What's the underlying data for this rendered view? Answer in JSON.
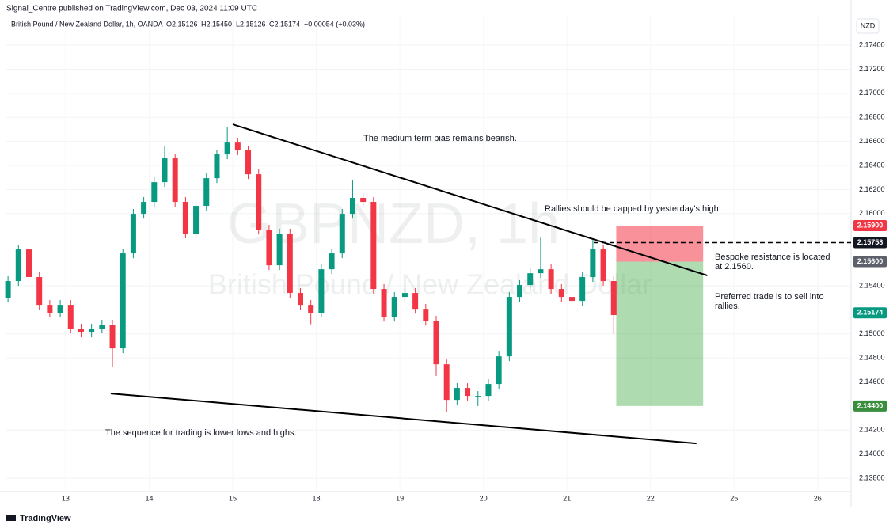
{
  "header": {
    "publisher": "Signal_Centre published on TradingView.com, Dec 03, 2024 11:09 UTC",
    "symbol": "British Pound / New Zealand Dollar, 1h, OANDA",
    "ohlc": [
      "O2.15126",
      "H2.15450",
      "L2.15126",
      "C2.15174",
      "+0.00054 (+0.03%)"
    ]
  },
  "footer": {
    "brand": "TradingView"
  },
  "chart_data": {
    "type": "candlestick",
    "currency": "NZD",
    "watermark": {
      "symbol": "GBPNZD, 1h",
      "description": "British Pound / New Zealand Dollar"
    },
    "up_color": "#089981",
    "down_color": "#f23645",
    "x": [
      -0.69,
      -0.565,
      -0.44,
      -0.315,
      -0.19,
      -0.065,
      0.06,
      0.185,
      0.31,
      0.435,
      0.56,
      0.685,
      0.81,
      0.935,
      1.06,
      1.185,
      1.31,
      1.435,
      1.56,
      1.685,
      1.81,
      1.935,
      2.06,
      2.185,
      2.31,
      2.435,
      2.56,
      2.685,
      2.81,
      2.935,
      3.06,
      3.185,
      3.31,
      3.435,
      3.56,
      3.685,
      3.81,
      3.935,
      4.06,
      4.185,
      4.31,
      4.435,
      4.56,
      4.685,
      4.81,
      4.935,
      5.06,
      5.185,
      5.31,
      5.435,
      5.56,
      5.685,
      5.81,
      5.935,
      6.06,
      6.185,
      6.31,
      6.435,
      6.56
    ],
    "open": [
      2.153,
      2.15439,
      2.15702,
      2.15472,
      2.15241,
      2.15175,
      2.15241,
      2.15044,
      2.15011,
      2.15044,
      2.15077,
      2.14879,
      2.15669,
      2.15998,
      2.16097,
      2.16261,
      2.16459,
      2.16097,
      2.15834,
      2.16064,
      2.16294,
      2.16492,
      2.1659,
      2.16525,
      2.16327,
      2.15866,
      2.1557,
      2.15834,
      2.1534,
      2.15241,
      2.15175,
      2.15537,
      2.15669,
      2.15998,
      2.1613,
      2.16097,
      2.15373,
      2.15142,
      2.15307,
      2.1534,
      2.15208,
      2.15109,
      2.14747,
      2.14451,
      2.1455,
      2.14484,
      2.14484,
      2.14583,
      2.14813,
      2.15307,
      2.15406,
      2.15504,
      2.15537,
      2.15373,
      2.15307,
      2.15274,
      2.15472,
      2.15702,
      2.15439
    ],
    "high": [
      2.15479,
      2.15742,
      2.15742,
      2.15512,
      2.15281,
      2.15281,
      2.15281,
      2.15084,
      2.15084,
      2.15117,
      2.15117,
      2.15709,
      2.16038,
      2.16137,
      2.16301,
      2.1656,
      2.16499,
      2.16137,
      2.16104,
      2.16334,
      2.16532,
      2.1672,
      2.1663,
      2.16565,
      2.16367,
      2.15906,
      2.15874,
      2.15874,
      2.1538,
      2.15281,
      2.15577,
      2.15709,
      2.16038,
      2.1628,
      2.1617,
      2.16137,
      2.15413,
      2.15347,
      2.1538,
      2.1538,
      2.15248,
      2.15149,
      2.14787,
      2.1459,
      2.1459,
      2.14524,
      2.14623,
      2.14853,
      2.15347,
      2.15446,
      2.15544,
      2.158,
      2.15577,
      2.15413,
      2.15347,
      2.15512,
      2.1578,
      2.15742,
      2.15479
    ],
    "low": [
      2.1526,
      2.15399,
      2.15432,
      2.15201,
      2.15135,
      2.15135,
      2.15004,
      2.14971,
      2.14971,
      2.15004,
      2.14728,
      2.14839,
      2.15629,
      2.15958,
      2.16057,
      2.16221,
      2.16057,
      2.15794,
      2.15794,
      2.16024,
      2.16254,
      2.16452,
      2.16485,
      2.16287,
      2.15826,
      2.1553,
      2.1553,
      2.153,
      2.15201,
      2.1508,
      2.15135,
      2.15497,
      2.15629,
      2.15958,
      2.16057,
      2.15333,
      2.15102,
      2.15102,
      2.15267,
      2.15168,
      2.15069,
      2.1465,
      2.1435,
      2.14411,
      2.14444,
      2.144,
      2.14444,
      2.14543,
      2.14773,
      2.15267,
      2.15366,
      2.15464,
      2.15333,
      2.15267,
      2.15234,
      2.15234,
      2.15432,
      2.15399,
      2.15
    ],
    "close": [
      2.15439,
      2.15702,
      2.15472,
      2.15241,
      2.15175,
      2.15241,
      2.15044,
      2.15011,
      2.15044,
      2.15077,
      2.14879,
      2.15669,
      2.15998,
      2.16097,
      2.16261,
      2.16459,
      2.16097,
      2.15834,
      2.16064,
      2.16294,
      2.16492,
      2.1659,
      2.16525,
      2.16327,
      2.15866,
      2.1557,
      2.15834,
      2.1534,
      2.15241,
      2.15175,
      2.15537,
      2.15669,
      2.15998,
      2.1613,
      2.16097,
      2.15373,
      2.15142,
      2.15307,
      2.1534,
      2.15208,
      2.15109,
      2.14747,
      2.14451,
      2.1455,
      2.14484,
      2.14484,
      2.14583,
      2.14813,
      2.15307,
      2.15406,
      2.15504,
      2.15537,
      2.15373,
      2.15307,
      2.15274,
      2.15472,
      2.15702,
      2.15439,
      2.15156
    ],
    "xlim": [
      -0.71,
      9.4
    ],
    "xticks": [
      {
        "value": 0,
        "label": "13"
      },
      {
        "value": 1,
        "label": "14"
      },
      {
        "value": 2,
        "label": "15"
      },
      {
        "value": 3,
        "label": "18"
      },
      {
        "value": 4,
        "label": "19"
      },
      {
        "value": 5,
        "label": "20"
      },
      {
        "value": 6,
        "label": "21"
      },
      {
        "value": 7,
        "label": "22"
      },
      {
        "value": 8,
        "label": "25"
      },
      {
        "value": 9,
        "label": "26"
      }
    ],
    "ylim": [
      2.13695,
      2.17644
    ],
    "yticks": [
      {
        "value": 2.138,
        "label": "2.13800"
      },
      {
        "value": 2.14,
        "label": "2.14000"
      },
      {
        "value": 2.142,
        "label": "2.14200"
      },
      {
        "value": 2.146,
        "label": "2.14600"
      },
      {
        "value": 2.148,
        "label": "2.14800"
      },
      {
        "value": 2.15,
        "label": "2.15000"
      },
      {
        "value": 2.154,
        "label": "2.15400"
      },
      {
        "value": 2.16,
        "label": "2.16000"
      },
      {
        "value": 2.162,
        "label": "2.16200"
      },
      {
        "value": 2.164,
        "label": "2.16400"
      },
      {
        "value": 2.166,
        "label": "2.16600"
      },
      {
        "value": 2.168,
        "label": "2.16800"
      },
      {
        "value": 2.17,
        "label": "2.17000"
      },
      {
        "value": 2.172,
        "label": "2.17200"
      },
      {
        "value": 2.174,
        "label": "2.17400"
      }
    ],
    "grid": true,
    "trendlines": [
      {
        "x": [
          2.0,
          7.68
        ],
        "y": [
          2.16742,
          2.15485
        ]
      },
      {
        "x": [
          0.54,
          7.55
        ],
        "y": [
          2.14504,
          2.14089
        ]
      }
    ],
    "position": {
      "x": [
        6.59,
        7.63
      ],
      "stop": 2.159,
      "entry": 2.156,
      "target": 2.144
    },
    "price_line": {
      "x_start": 6.32,
      "value": 2.15758
    },
    "price_labels": [
      {
        "value": 2.159,
        "label": "2.15900",
        "color": "#f23645"
      },
      {
        "value": 2.15758,
        "label": "2.15758",
        "color": "#131722"
      },
      {
        "value": 2.156,
        "label": "2.15600",
        "color": "#5d606b"
      },
      {
        "value": 2.15174,
        "label": "2.15174",
        "color": "#089981"
      },
      {
        "value": 2.144,
        "label": "2.14400",
        "color": "#388e3c"
      }
    ],
    "annotations": [
      "The medium term bias remains bearish.",
      "Rallies should be capped by yesterday's high.",
      "Bespoke resistance is located",
      "at 2.1560.",
      "Preferred trade is to sell into",
      "rallies.",
      "The sequence for trading is lower lows and highs."
    ]
  }
}
